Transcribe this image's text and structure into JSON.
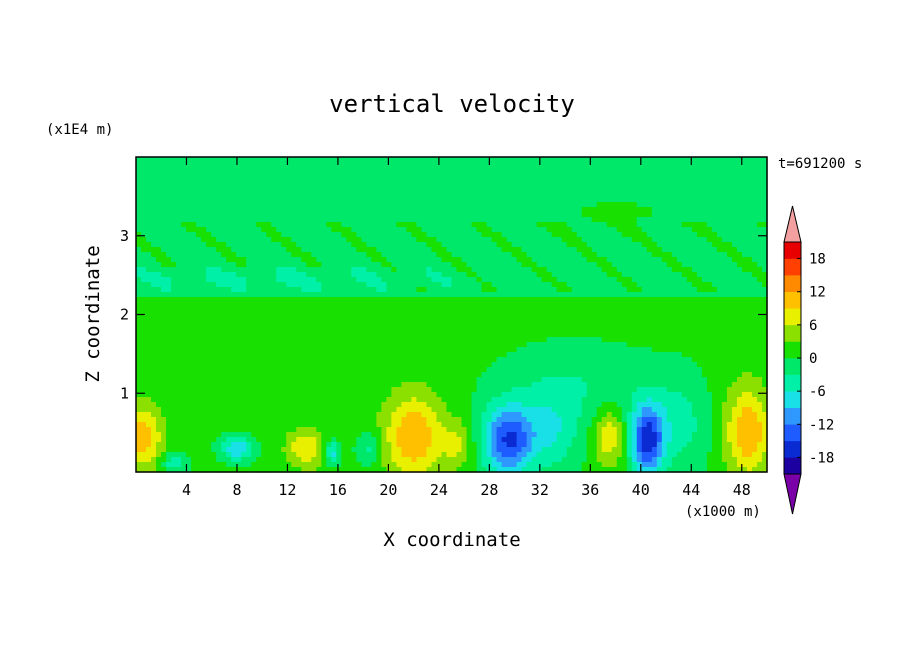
{
  "chart_data": {
    "type": "heatmap",
    "title": "vertical velocity",
    "xlabel": "X coordinate",
    "ylabel": "Z coordinate",
    "x_unit": "(x1000 m)",
    "y_unit": "(x1E4 m)",
    "time_label": "t=691200 s",
    "xlim": [
      0,
      50
    ],
    "ylim": [
      0,
      4
    ],
    "x_ticks": [
      4,
      8,
      12,
      16,
      20,
      24,
      28,
      32,
      36,
      40,
      44,
      48
    ],
    "y_ticks": [
      1,
      2,
      3
    ],
    "colorbar": {
      "levels": [
        -21,
        -18,
        -15,
        -12,
        -9,
        -6,
        -3,
        0,
        3,
        6,
        9,
        12,
        15,
        18,
        21
      ],
      "tick_labels": [
        "18",
        "12",
        "6",
        "0",
        "-6",
        "-12",
        "-18"
      ],
      "tick_values": [
        18,
        12,
        6,
        0,
        -6,
        -12,
        -18
      ],
      "colors": [
        "#7a00a8",
        "#1c00a0",
        "#0a2ad2",
        "#1f5cff",
        "#2f98ff",
        "#18e0e6",
        "#00f0a8",
        "#00e86a",
        "#18e000",
        "#8ce000",
        "#e8f000",
        "#ffc000",
        "#ff8a00",
        "#ff4000",
        "#e80000",
        "#f4a0a0"
      ]
    },
    "blobs": [
      {
        "x": 0.5,
        "z": 0.45,
        "rx": 1.6,
        "rz": 0.42,
        "w": 10
      },
      {
        "x": 3.0,
        "z": 0.12,
        "rx": 1.0,
        "rz": 0.12,
        "w": -6
      },
      {
        "x": 8.0,
        "z": 0.3,
        "rx": 1.2,
        "rz": 0.15,
        "w": -10
      },
      {
        "x": 13.5,
        "z": 0.3,
        "rx": 1.6,
        "rz": 0.25,
        "w": 8
      },
      {
        "x": 15.5,
        "z": 0.25,
        "rx": 0.6,
        "rz": 0.15,
        "w": -9
      },
      {
        "x": 18.5,
        "z": 0.3,
        "rx": 1.0,
        "rz": 0.2,
        "w": -5
      },
      {
        "x": 22.0,
        "z": 0.45,
        "rx": 2.4,
        "rz": 0.55,
        "w": 11
      },
      {
        "x": 25.5,
        "z": 0.35,
        "rx": 1.2,
        "rz": 0.3,
        "w": 5
      },
      {
        "x": 29.5,
        "z": 0.4,
        "rx": 2.0,
        "rz": 0.45,
        "w": -16
      },
      {
        "x": 33.0,
        "z": 0.5,
        "rx": 2.2,
        "rz": 0.5,
        "w": -6
      },
      {
        "x": 37.5,
        "z": 0.45,
        "rx": 1.2,
        "rz": 0.35,
        "w": 8
      },
      {
        "x": 40.5,
        "z": 0.4,
        "rx": 1.3,
        "rz": 0.45,
        "w": -17
      },
      {
        "x": 43.0,
        "z": 0.6,
        "rx": 2.4,
        "rz": 0.6,
        "w": -5
      },
      {
        "x": 48.5,
        "z": 0.5,
        "rx": 1.8,
        "rz": 0.55,
        "w": 11
      },
      {
        "x": 35.0,
        "z": 1.1,
        "rx": 6.0,
        "rz": 0.5,
        "w": -3.5
      },
      {
        "x": 38.0,
        "z": 3.3,
        "rx": 6.0,
        "rz": 0.25,
        "w": 1.5
      },
      {
        "x": 10.0,
        "z": 2.45,
        "rx": 12.0,
        "rz": 0.12,
        "w": -2.2
      },
      {
        "x": 5.0,
        "z": 1.6,
        "rx": 5.0,
        "rz": 0.6,
        "w": 0.6
      },
      {
        "x": 47.5,
        "z": 1.6,
        "rx": 2.5,
        "rz": 0.8,
        "w": 0.8
      }
    ]
  }
}
